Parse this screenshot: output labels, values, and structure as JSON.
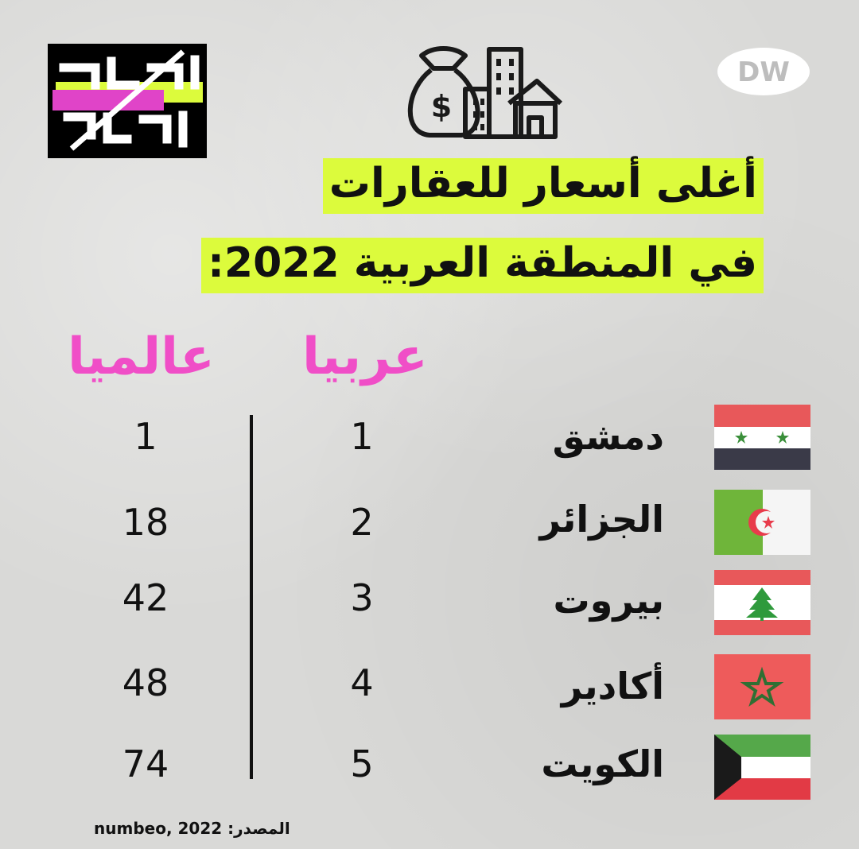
{
  "logo": {
    "brand_name": "جعفر توك"
  },
  "brand": {
    "dw": "DW"
  },
  "header": {
    "icon": "money-bag-buildings-icon",
    "title_line1": "أغلى أسعار للعقارات",
    "title_line2": "في المنطقة العربية 2022:"
  },
  "columns": {
    "arab": "عربيا",
    "world": "عالميا"
  },
  "rows": [
    {
      "city": "دمشق",
      "arab_rank": "1",
      "world_rank": "1",
      "flag": "syria-flag"
    },
    {
      "city": "الجزائر",
      "arab_rank": "2",
      "world_rank": "18",
      "flag": "algeria-flag"
    },
    {
      "city": "بيروت",
      "arab_rank": "3",
      "world_rank": "42",
      "flag": "lebanon-flag"
    },
    {
      "city": "أكادير",
      "arab_rank": "4",
      "world_rank": "48",
      "flag": "morocco-flag"
    },
    {
      "city": "الكويت",
      "arab_rank": "5",
      "world_rank": "74",
      "flag": "kuwait-flag"
    }
  ],
  "source": {
    "label": "المصدر:",
    "value": "numbeo, 2022"
  },
  "colors": {
    "highlight": "#dcfb3c",
    "accent_pink": "#f04ec7"
  }
}
